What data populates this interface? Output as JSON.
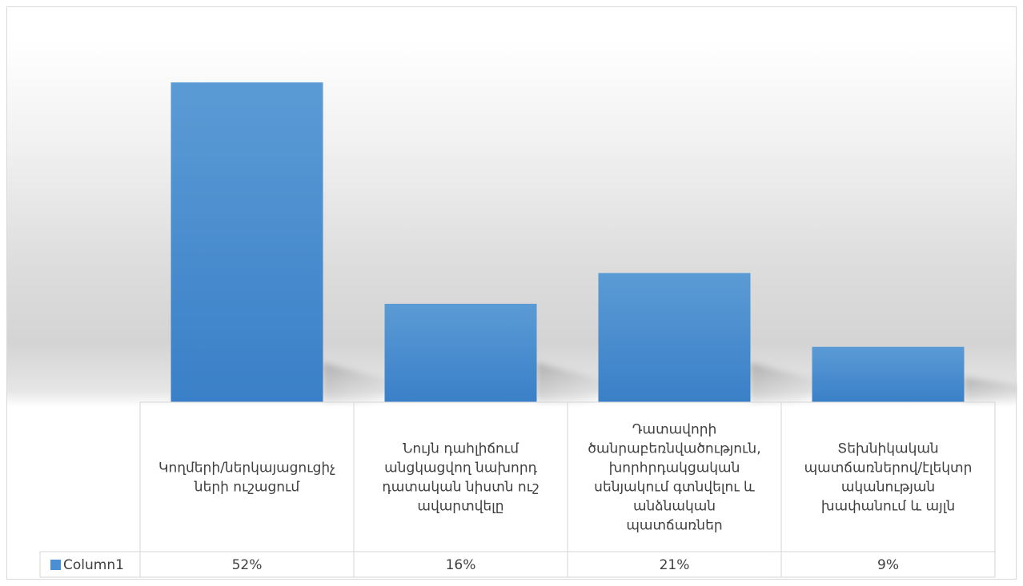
{
  "chart_data": {
    "type": "bar",
    "title": "",
    "xlabel": "",
    "ylabel": "",
    "ylim": [
      0,
      60
    ],
    "grid": false,
    "legend_position": "data-table-left",
    "categories": [
      [
        "Կողմերի/ներկայացուցիչ",
        "ների ուշացում"
      ],
      [
        "Նույն դահլիճում",
        "անցկացվող նախորդ",
        "դատական նիստն ուշ",
        "ավարտվելը"
      ],
      [
        "Դատավորի",
        "ծանրաբեռնվածություն,",
        "խորհրդակցական",
        "սենյակում գտնվելու և",
        "անձնական",
        "պատճառներ"
      ],
      [
        "Տեխնիկական",
        "պատճառներով/էլեկտր",
        "ականության",
        "խափանում և այլն"
      ]
    ],
    "series": [
      {
        "name": "Column1",
        "values": [
          52,
          16,
          21,
          9
        ],
        "value_labels": [
          "52%",
          "16%",
          "21%",
          "9%"
        ],
        "color": "#4a8fd4"
      }
    ],
    "colors": {
      "bar_top": "#5b9bd5",
      "bar_bottom": "#3a80c8",
      "grid_line": "#d6d6d6",
      "text": "#404040"
    }
  }
}
